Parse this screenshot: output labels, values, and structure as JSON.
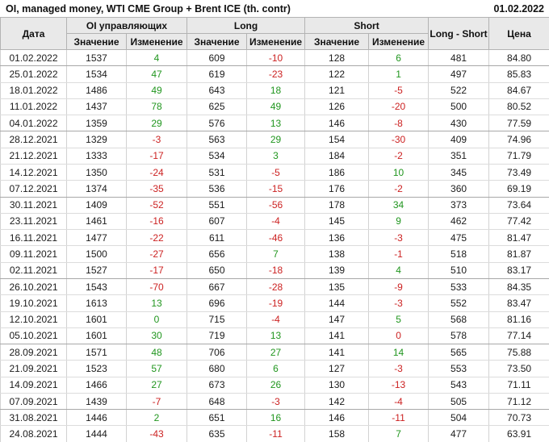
{
  "report": {
    "title": "OI, managed money, WTI CME Group + Brent ICE (th. contr)",
    "date": "01.02.2022"
  },
  "colors": {
    "positive": "#21961f",
    "negative": "#cc2222",
    "header_bg": "#e9e9e9",
    "text": "#1b1b1b"
  },
  "table": {
    "headers": {
      "date": "Дата",
      "oi_group": "OI управляющих",
      "long_group": "Long",
      "short_group": "Short",
      "long_short": "Long - Short",
      "price": "Цена",
      "value": "Значение",
      "change": "Изменение"
    },
    "rows": [
      {
        "date": "01.02.2022",
        "oi": "1537",
        "oi_chg": {
          "v": "4",
          "c": "pos"
        },
        "long": "609",
        "long_chg": {
          "v": "-10",
          "c": "neg"
        },
        "short": "128",
        "short_chg": {
          "v": "6",
          "c": "pos"
        },
        "long_short": "481",
        "price": "84.80",
        "group_end": true
      },
      {
        "date": "25.01.2022",
        "oi": "1534",
        "oi_chg": {
          "v": "47",
          "c": "pos"
        },
        "long": "619",
        "long_chg": {
          "v": "-23",
          "c": "neg"
        },
        "short": "122",
        "short_chg": {
          "v": "1",
          "c": "pos"
        },
        "long_short": "497",
        "price": "85.83",
        "group_end": false
      },
      {
        "date": "18.01.2022",
        "oi": "1486",
        "oi_chg": {
          "v": "49",
          "c": "pos"
        },
        "long": "643",
        "long_chg": {
          "v": "18",
          "c": "pos"
        },
        "short": "121",
        "short_chg": {
          "v": "-5",
          "c": "neg"
        },
        "long_short": "522",
        "price": "84.67",
        "group_end": false
      },
      {
        "date": "11.01.2022",
        "oi": "1437",
        "oi_chg": {
          "v": "78",
          "c": "pos"
        },
        "long": "625",
        "long_chg": {
          "v": "49",
          "c": "pos"
        },
        "short": "126",
        "short_chg": {
          "v": "-20",
          "c": "neg"
        },
        "long_short": "500",
        "price": "80.52",
        "group_end": false
      },
      {
        "date": "04.01.2022",
        "oi": "1359",
        "oi_chg": {
          "v": "29",
          "c": "pos"
        },
        "long": "576",
        "long_chg": {
          "v": "13",
          "c": "pos"
        },
        "short": "146",
        "short_chg": {
          "v": "-8",
          "c": "neg"
        },
        "long_short": "430",
        "price": "77.59",
        "group_end": true
      },
      {
        "date": "28.12.2021",
        "oi": "1329",
        "oi_chg": {
          "v": "-3",
          "c": "neg"
        },
        "long": "563",
        "long_chg": {
          "v": "29",
          "c": "pos"
        },
        "short": "154",
        "short_chg": {
          "v": "-30",
          "c": "neg"
        },
        "long_short": "409",
        "price": "74.96",
        "group_end": false
      },
      {
        "date": "21.12.2021",
        "oi": "1333",
        "oi_chg": {
          "v": "-17",
          "c": "neg"
        },
        "long": "534",
        "long_chg": {
          "v": "3",
          "c": "pos"
        },
        "short": "184",
        "short_chg": {
          "v": "-2",
          "c": "neg"
        },
        "long_short": "351",
        "price": "71.79",
        "group_end": false
      },
      {
        "date": "14.12.2021",
        "oi": "1350",
        "oi_chg": {
          "v": "-24",
          "c": "neg"
        },
        "long": "531",
        "long_chg": {
          "v": "-5",
          "c": "neg"
        },
        "short": "186",
        "short_chg": {
          "v": "10",
          "c": "pos"
        },
        "long_short": "345",
        "price": "73.49",
        "group_end": false
      },
      {
        "date": "07.12.2021",
        "oi": "1374",
        "oi_chg": {
          "v": "-35",
          "c": "neg"
        },
        "long": "536",
        "long_chg": {
          "v": "-15",
          "c": "neg"
        },
        "short": "176",
        "short_chg": {
          "v": "-2",
          "c": "neg"
        },
        "long_short": "360",
        "price": "69.19",
        "group_end": true
      },
      {
        "date": "30.11.2021",
        "oi": "1409",
        "oi_chg": {
          "v": "-52",
          "c": "neg"
        },
        "long": "551",
        "long_chg": {
          "v": "-56",
          "c": "neg"
        },
        "short": "178",
        "short_chg": {
          "v": "34",
          "c": "pos"
        },
        "long_short": "373",
        "price": "73.64",
        "group_end": false
      },
      {
        "date": "23.11.2021",
        "oi": "1461",
        "oi_chg": {
          "v": "-16",
          "c": "neg"
        },
        "long": "607",
        "long_chg": {
          "v": "-4",
          "c": "neg"
        },
        "short": "145",
        "short_chg": {
          "v": "9",
          "c": "pos"
        },
        "long_short": "462",
        "price": "77.42",
        "group_end": false
      },
      {
        "date": "16.11.2021",
        "oi": "1477",
        "oi_chg": {
          "v": "-22",
          "c": "neg"
        },
        "long": "611",
        "long_chg": {
          "v": "-46",
          "c": "neg"
        },
        "short": "136",
        "short_chg": {
          "v": "-3",
          "c": "neg"
        },
        "long_short": "475",
        "price": "81.47",
        "group_end": false
      },
      {
        "date": "09.11.2021",
        "oi": "1500",
        "oi_chg": {
          "v": "-27",
          "c": "neg"
        },
        "long": "656",
        "long_chg": {
          "v": "7",
          "c": "pos"
        },
        "short": "138",
        "short_chg": {
          "v": "-1",
          "c": "neg"
        },
        "long_short": "518",
        "price": "81.87",
        "group_end": false
      },
      {
        "date": "02.11.2021",
        "oi": "1527",
        "oi_chg": {
          "v": "-17",
          "c": "neg"
        },
        "long": "650",
        "long_chg": {
          "v": "-18",
          "c": "neg"
        },
        "short": "139",
        "short_chg": {
          "v": "4",
          "c": "pos"
        },
        "long_short": "510",
        "price": "83.17",
        "group_end": true
      },
      {
        "date": "26.10.2021",
        "oi": "1543",
        "oi_chg": {
          "v": "-70",
          "c": "neg"
        },
        "long": "667",
        "long_chg": {
          "v": "-28",
          "c": "neg"
        },
        "short": "135",
        "short_chg": {
          "v": "-9",
          "c": "neg"
        },
        "long_short": "533",
        "price": "84.35",
        "group_end": false
      },
      {
        "date": "19.10.2021",
        "oi": "1613",
        "oi_chg": {
          "v": "13",
          "c": "pos"
        },
        "long": "696",
        "long_chg": {
          "v": "-19",
          "c": "neg"
        },
        "short": "144",
        "short_chg": {
          "v": "-3",
          "c": "neg"
        },
        "long_short": "552",
        "price": "83.47",
        "group_end": false
      },
      {
        "date": "12.10.2021",
        "oi": "1601",
        "oi_chg": {
          "v": "0",
          "c": "pos"
        },
        "long": "715",
        "long_chg": {
          "v": "-4",
          "c": "neg"
        },
        "short": "147",
        "short_chg": {
          "v": "5",
          "c": "pos"
        },
        "long_short": "568",
        "price": "81.16",
        "group_end": false
      },
      {
        "date": "05.10.2021",
        "oi": "1601",
        "oi_chg": {
          "v": "30",
          "c": "pos"
        },
        "long": "719",
        "long_chg": {
          "v": "13",
          "c": "pos"
        },
        "short": "141",
        "short_chg": {
          "v": "0",
          "c": "neg"
        },
        "long_short": "578",
        "price": "77.14",
        "group_end": true
      },
      {
        "date": "28.09.2021",
        "oi": "1571",
        "oi_chg": {
          "v": "48",
          "c": "pos"
        },
        "long": "706",
        "long_chg": {
          "v": "27",
          "c": "pos"
        },
        "short": "141",
        "short_chg": {
          "v": "14",
          "c": "pos"
        },
        "long_short": "565",
        "price": "75.88",
        "group_end": false
      },
      {
        "date": "21.09.2021",
        "oi": "1523",
        "oi_chg": {
          "v": "57",
          "c": "pos"
        },
        "long": "680",
        "long_chg": {
          "v": "6",
          "c": "pos"
        },
        "short": "127",
        "short_chg": {
          "v": "-3",
          "c": "neg"
        },
        "long_short": "553",
        "price": "73.50",
        "group_end": false
      },
      {
        "date": "14.09.2021",
        "oi": "1466",
        "oi_chg": {
          "v": "27",
          "c": "pos"
        },
        "long": "673",
        "long_chg": {
          "v": "26",
          "c": "pos"
        },
        "short": "130",
        "short_chg": {
          "v": "-13",
          "c": "neg"
        },
        "long_short": "543",
        "price": "71.11",
        "group_end": false
      },
      {
        "date": "07.09.2021",
        "oi": "1439",
        "oi_chg": {
          "v": "-7",
          "c": "neg"
        },
        "long": "648",
        "long_chg": {
          "v": "-3",
          "c": "neg"
        },
        "short": "142",
        "short_chg": {
          "v": "-4",
          "c": "neg"
        },
        "long_short": "505",
        "price": "71.12",
        "group_end": true
      },
      {
        "date": "31.08.2021",
        "oi": "1446",
        "oi_chg": {
          "v": "2",
          "c": "pos"
        },
        "long": "651",
        "long_chg": {
          "v": "16",
          "c": "pos"
        },
        "short": "146",
        "short_chg": {
          "v": "-11",
          "c": "neg"
        },
        "long_short": "504",
        "price": "70.73",
        "group_end": false
      },
      {
        "date": "24.08.2021",
        "oi": "1444",
        "oi_chg": {
          "v": "-43",
          "c": "neg"
        },
        "long": "635",
        "long_chg": {
          "v": "-11",
          "c": "neg"
        },
        "short": "158",
        "short_chg": {
          "v": "7",
          "c": "pos"
        },
        "long_short": "477",
        "price": "63.91",
        "group_end": false
      }
    ]
  }
}
